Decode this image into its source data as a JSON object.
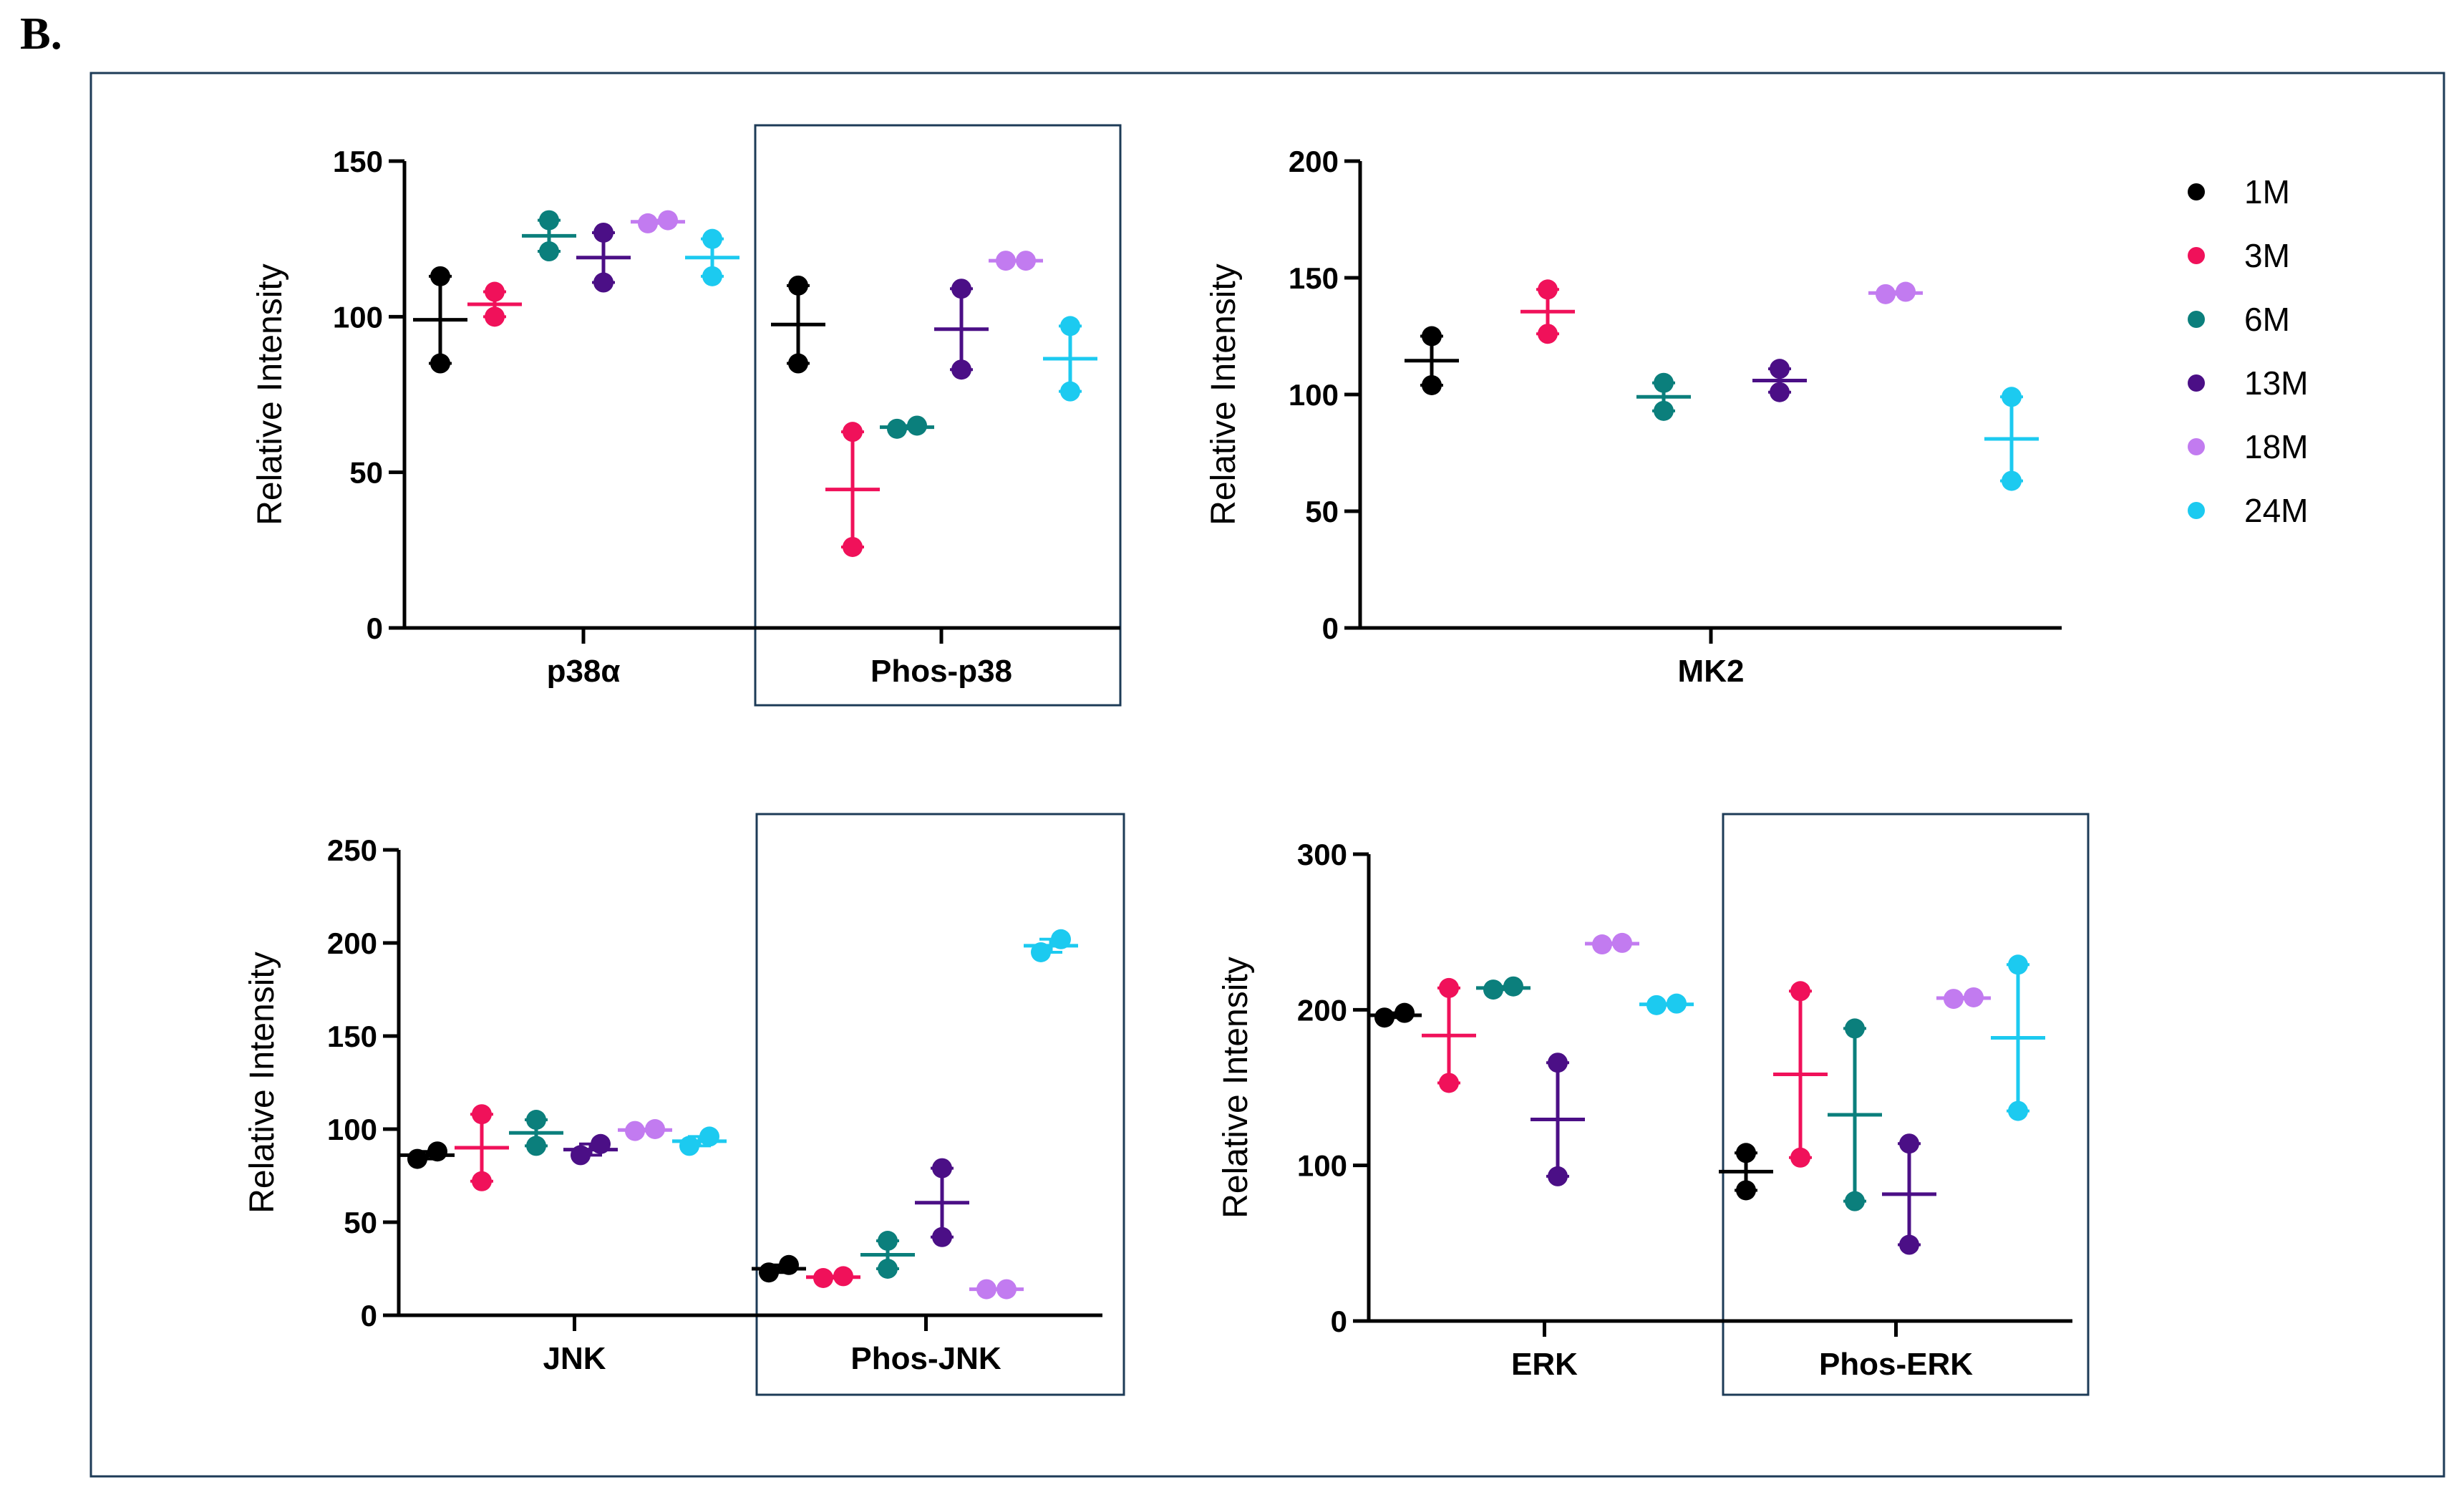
{
  "panel_label": "B.",
  "legend": [
    {
      "label": "1M",
      "color": "#000000"
    },
    {
      "label": "3M",
      "color": "#f0115a"
    },
    {
      "label": "6M",
      "color": "#0b7f7c"
    },
    {
      "label": "13M",
      "color": "#4b0f86"
    },
    {
      "label": "18M",
      "color": "#c27bf0"
    },
    {
      "label": "24M",
      "color": "#1ccaf0"
    }
  ],
  "colors": {
    "frame": "#1d3b57",
    "axis": "#000000"
  },
  "chart_data": [
    {
      "type": "scatter",
      "ylabel": "Relative Intensity",
      "ylim": [
        0,
        150
      ],
      "yticks": [
        0,
        50,
        100,
        150
      ],
      "categories": [
        "p38α",
        "Phos-p38"
      ],
      "highlighted": [
        "Phos-p38"
      ],
      "series": [
        {
          "name": "1M",
          "values": [
            [
              85,
              113
            ],
            [
              85,
              110
            ]
          ]
        },
        {
          "name": "3M",
          "values": [
            [
              100,
              108
            ],
            [
              26,
              63
            ]
          ]
        },
        {
          "name": "6M",
          "values": [
            [
              121,
              131
            ],
            [
              64,
              65
            ]
          ]
        },
        {
          "name": "13M",
          "values": [
            [
              111,
              127
            ],
            [
              83,
              109
            ]
          ]
        },
        {
          "name": "18M",
          "values": [
            [
              130,
              131
            ],
            [
              118,
              118
            ]
          ]
        },
        {
          "name": "24M",
          "values": [
            [
              113,
              125
            ],
            [
              76,
              97
            ]
          ]
        }
      ]
    },
    {
      "type": "scatter",
      "ylabel": "Relative Intensity",
      "ylim": [
        0,
        200
      ],
      "yticks": [
        0,
        50,
        100,
        150,
        200
      ],
      "categories": [
        "MK2"
      ],
      "highlighted": [],
      "series": [
        {
          "name": "1M",
          "values": [
            [
              104,
              125
            ]
          ]
        },
        {
          "name": "3M",
          "values": [
            [
              126,
              145
            ]
          ]
        },
        {
          "name": "6M",
          "values": [
            [
              93,
              105
            ]
          ]
        },
        {
          "name": "13M",
          "values": [
            [
              101,
              111
            ]
          ]
        },
        {
          "name": "18M",
          "values": [
            [
              143,
              144
            ]
          ]
        },
        {
          "name": "24M",
          "values": [
            [
              63,
              99
            ]
          ]
        }
      ]
    },
    {
      "type": "scatter",
      "ylabel": "Relative Intensity",
      "ylim": [
        0,
        250
      ],
      "yticks": [
        0,
        50,
        100,
        150,
        200,
        250
      ],
      "categories": [
        "JNK",
        "Phos-JNK"
      ],
      "highlighted": [
        "Phos-JNK"
      ],
      "series": [
        {
          "name": "1M",
          "values": [
            [
              84,
              88
            ],
            [
              23,
              27
            ]
          ]
        },
        {
          "name": "3M",
          "values": [
            [
              72,
              108
            ],
            [
              20,
              21
            ]
          ]
        },
        {
          "name": "6M",
          "values": [
            [
              91,
              105
            ],
            [
              25,
              40
            ]
          ]
        },
        {
          "name": "13M",
          "values": [
            [
              86,
              92
            ],
            [
              42,
              79
            ]
          ]
        },
        {
          "name": "18M",
          "values": [
            [
              99,
              100
            ],
            [
              14,
              14
            ]
          ]
        },
        {
          "name": "24M",
          "values": [
            [
              91,
              96
            ],
            [
              195,
              202
            ]
          ]
        }
      ]
    },
    {
      "type": "scatter",
      "ylabel": "Relative Intensity",
      "ylim": [
        0,
        300
      ],
      "yticks": [
        0,
        100,
        200,
        300
      ],
      "categories": [
        "ERK",
        "Phos-ERK"
      ],
      "highlighted": [
        "Phos-ERK"
      ],
      "series": [
        {
          "name": "1M",
          "values": [
            [
              195,
              198
            ],
            [
              84,
              108
            ]
          ]
        },
        {
          "name": "3M",
          "values": [
            [
              153,
              214
            ],
            [
              105,
              212
            ]
          ]
        },
        {
          "name": "6M",
          "values": [
            [
              213,
              215
            ],
            [
              77,
              188
            ]
          ]
        },
        {
          "name": "13M",
          "values": [
            [
              93,
              166
            ],
            [
              49,
              114
            ]
          ]
        },
        {
          "name": "18M",
          "values": [
            [
              242,
              243
            ],
            [
              207,
              208
            ]
          ]
        },
        {
          "name": "24M",
          "values": [
            [
              203,
              204
            ],
            [
              135,
              229
            ]
          ]
        }
      ]
    }
  ]
}
